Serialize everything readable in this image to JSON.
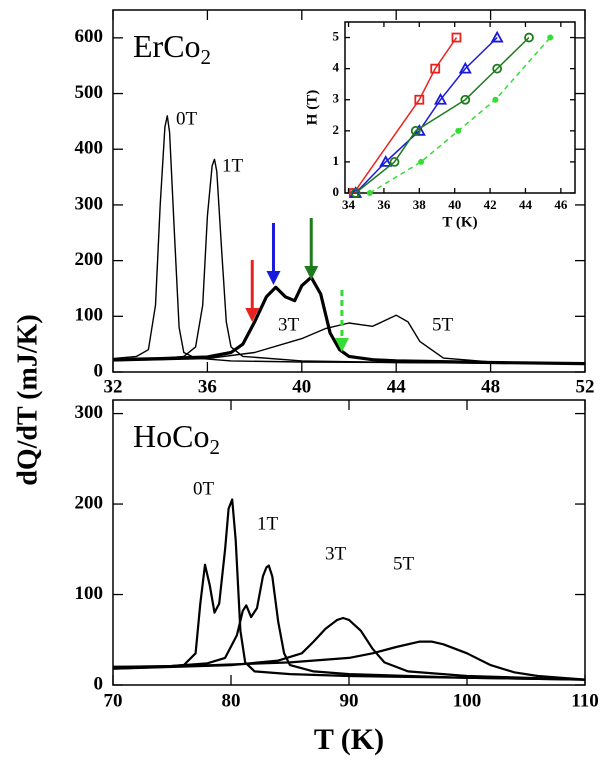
{
  "chart_data": [
    {
      "type": "line",
      "panel_label": {
        "text": "ErCo",
        "subscript": "2"
      },
      "ylabel": "dQ/dT (mJ/K)",
      "xlim": [
        32,
        52
      ],
      "ylim": [
        0,
        650
      ],
      "xticks": [
        32,
        36,
        40,
        44,
        48,
        52
      ],
      "yticks": [
        0,
        100,
        200,
        300,
        400,
        500,
        600
      ],
      "series": [
        {
          "name": "0T",
          "color": "#000000",
          "x": [
            32,
            33,
            33.5,
            33.8,
            34.0,
            34.2,
            34.3,
            34.4,
            34.6,
            34.8,
            35.0,
            35.5,
            37,
            40,
            44,
            48,
            52
          ],
          "values": [
            24,
            28,
            40,
            120,
            300,
            440,
            460,
            430,
            250,
            80,
            35,
            25,
            20,
            18,
            17,
            16,
            15
          ]
        },
        {
          "name": "1T",
          "color": "#000000",
          "x": [
            32,
            34,
            35,
            35.5,
            35.8,
            36.0,
            36.2,
            36.3,
            36.4,
            36.6,
            36.8,
            37.0,
            37.5,
            40,
            44,
            48,
            52
          ],
          "values": [
            22,
            24,
            28,
            45,
            120,
            280,
            370,
            382,
            360,
            220,
            90,
            45,
            28,
            20,
            17,
            16,
            15
          ]
        },
        {
          "name": "3T",
          "color": "#000000",
          "thick": true,
          "x": [
            32,
            34,
            36,
            37,
            37.5,
            38,
            38.5,
            38.9,
            39.3,
            39.7,
            40.0,
            40.4,
            40.8,
            41.2,
            41.6,
            42,
            43,
            44,
            48,
            52
          ],
          "values": [
            22,
            24,
            27,
            35,
            50,
            90,
            135,
            152,
            135,
            128,
            155,
            170,
            140,
            70,
            40,
            28,
            22,
            20,
            17,
            15
          ]
        },
        {
          "name": "5T",
          "color": "#000000",
          "x": [
            32,
            36,
            38,
            40,
            41,
            42,
            42.5,
            43,
            43.5,
            44,
            44.5,
            45,
            46,
            48,
            52
          ],
          "values": [
            20,
            24,
            35,
            60,
            78,
            88,
            85,
            82,
            92,
            102,
            90,
            55,
            25,
            18,
            15
          ]
        }
      ],
      "arrows": [
        {
          "x": 37.9,
          "color": "#e8231f"
        },
        {
          "x": 38.8,
          "color": "#1a1adb"
        },
        {
          "x": 40.4,
          "color": "#1e7b1e"
        },
        {
          "x": 41.7,
          "color": "#33dd33",
          "dashed": true
        }
      ]
    },
    {
      "type": "line",
      "panel_label": {
        "text": "HoCo",
        "subscript": "2"
      },
      "xlabel": "T (K)",
      "xlim": [
        70,
        110
      ],
      "ylim": [
        0,
        315
      ],
      "xticks": [
        70,
        80,
        90,
        100,
        110
      ],
      "yticks": [
        0,
        100,
        200,
        300
      ],
      "series": [
        {
          "name": "0T",
          "color": "#000000",
          "x": [
            70,
            74,
            76,
            77,
            77.4,
            77.8,
            78.2,
            78.6,
            79.0,
            79.5,
            79.8,
            80.1,
            80.4,
            80.8,
            81.2,
            82,
            85,
            90,
            100,
            110
          ],
          "values": [
            20,
            20,
            22,
            35,
            90,
            133,
            110,
            80,
            90,
            150,
            195,
            205,
            160,
            60,
            25,
            15,
            12,
            10,
            8,
            6
          ]
        },
        {
          "name": "1T",
          "color": "#000000",
          "x": [
            70,
            75,
            78,
            79.5,
            80.5,
            81.0,
            81.3,
            81.7,
            82.2,
            82.7,
            83.0,
            83.2,
            83.5,
            84.0,
            84.5,
            85,
            87,
            90,
            100,
            110
          ],
          "values": [
            20,
            21,
            24,
            30,
            55,
            82,
            88,
            75,
            85,
            120,
            130,
            132,
            120,
            70,
            35,
            22,
            15,
            12,
            8,
            6
          ]
        },
        {
          "name": "3T",
          "color": "#000000",
          "x": [
            70,
            80,
            84,
            86,
            87,
            88,
            89,
            89.5,
            90,
            91,
            92,
            93,
            95,
            100,
            110
          ],
          "values": [
            18,
            22,
            27,
            35,
            48,
            62,
            72,
            74,
            72,
            60,
            40,
            25,
            15,
            10,
            6
          ]
        },
        {
          "name": "5T",
          "color": "#000000",
          "x": [
            70,
            85,
            90,
            92,
            94,
            96,
            97,
            98,
            100,
            102,
            104,
            106,
            110
          ],
          "values": [
            18,
            25,
            30,
            35,
            42,
            48,
            48,
            45,
            35,
            22,
            14,
            10,
            6
          ]
        }
      ]
    },
    {
      "type": "scatter-line",
      "xlabel": "T (K)",
      "ylabel": "H (T)",
      "xlim": [
        33.8,
        46.8
      ],
      "ylim": [
        0,
        5.5
      ],
      "xticks": [
        34,
        36,
        38,
        40,
        42,
        44,
        46
      ],
      "yticks": [
        0,
        1,
        2,
        3,
        4,
        5
      ],
      "series": [
        {
          "color": "#e8231f",
          "marker": "square",
          "x": [
            34.3,
            38.0,
            38.9,
            40.1
          ],
          "values": [
            0,
            3,
            4,
            5
          ]
        },
        {
          "color": "#1a1adb",
          "marker": "triangle",
          "x": [
            34.4,
            36.1,
            38.0,
            39.2,
            40.6,
            42.4
          ],
          "values": [
            0,
            1,
            2,
            3,
            4,
            5
          ]
        },
        {
          "color": "#1e7b1e",
          "marker": "circle",
          "x": [
            34.4,
            36.6,
            37.8,
            40.6,
            42.4,
            44.2
          ],
          "values": [
            0,
            1,
            2,
            3,
            4,
            5
          ]
        },
        {
          "color": "#33dd33",
          "marker": "dot",
          "dashed": true,
          "x": [
            35.2,
            38.1,
            40.2,
            42.3,
            45.4
          ],
          "values": [
            0,
            1,
            2,
            3,
            5
          ]
        }
      ]
    }
  ]
}
